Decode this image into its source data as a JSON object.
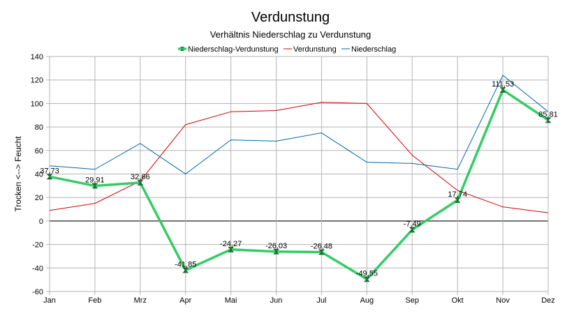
{
  "chart_data": {
    "type": "line",
    "title": "Verdunstung",
    "subtitle": "Verhältnis Niederschlag zu Verdunstung",
    "xlabel": "",
    "ylabel": "Trocken <--> Feucht",
    "ylim": [
      -60,
      140
    ],
    "yticks": [
      -60,
      -40,
      -20,
      0,
      20,
      40,
      60,
      80,
      100,
      120,
      140
    ],
    "grid": true,
    "legend_position": "top",
    "categories": [
      "Jan",
      "Feb",
      "Mrz",
      "Apr",
      "Mai",
      "Jun",
      "Jul",
      "Aug",
      "Sep",
      "Okt",
      "Nov",
      "Dez"
    ],
    "series": [
      {
        "name": "Niederschlag-Verdunstung",
        "color": "#33cc66",
        "values": [
          37.73,
          29.91,
          32.66,
          -41.85,
          -24.27,
          -26.03,
          -26.48,
          -49.55,
          -7.49,
          17.74,
          111.53,
          85.81
        ],
        "labels": [
          "37,73",
          "29,91",
          "32,66",
          "-41,85",
          "-24,27",
          "-26,03",
          "-26,48",
          "-49,55",
          "-7,49",
          "17,74",
          "111,53",
          "85,81"
        ]
      },
      {
        "name": "Verdunstung",
        "color": "#cc0000",
        "values": [
          9,
          15,
          34,
          82,
          93,
          94,
          101,
          100,
          56,
          26,
          12,
          7
        ]
      },
      {
        "name": "Niederschlag",
        "color": "#0066aa",
        "values": [
          47,
          44,
          66,
          40,
          69,
          68,
          75,
          50,
          49,
          44,
          124,
          93
        ]
      }
    ]
  }
}
